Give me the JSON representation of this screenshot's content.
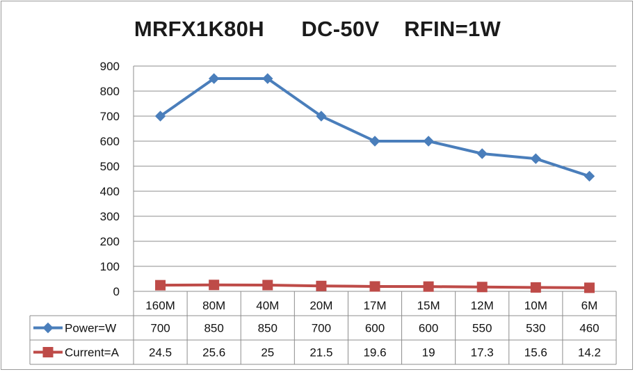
{
  "chart_data": {
    "type": "line",
    "title": "MRFX1K80H      DC-50V    RFIN=1W",
    "categories": [
      "160M",
      "80M",
      "40M",
      "20M",
      "17M",
      "15M",
      "12M",
      "10M",
      "6M"
    ],
    "series": [
      {
        "name": "Power=W",
        "values": [
          700,
          850,
          850,
          700,
          600,
          600,
          550,
          530,
          460
        ],
        "labels": [
          "700",
          "850",
          "850",
          "700",
          "600",
          "600",
          "550",
          "530",
          "460"
        ],
        "color": "#4a7ebb",
        "marker": "diamond"
      },
      {
        "name": "Current=A",
        "values": [
          24.5,
          25.6,
          25,
          21.5,
          19.6,
          19,
          17.3,
          15.6,
          14.2
        ],
        "labels": [
          "24.5",
          "25.6",
          "25",
          "21.5",
          "19.6",
          "19",
          "17.3",
          "15.6",
          "14.2"
        ],
        "color": "#be4b48",
        "marker": "square"
      }
    ],
    "ylim": [
      0,
      900
    ],
    "yticks": [
      "0",
      "100",
      "200",
      "300",
      "400",
      "500",
      "600",
      "700",
      "800",
      "900"
    ],
    "grid": true,
    "legend": "data-table"
  }
}
